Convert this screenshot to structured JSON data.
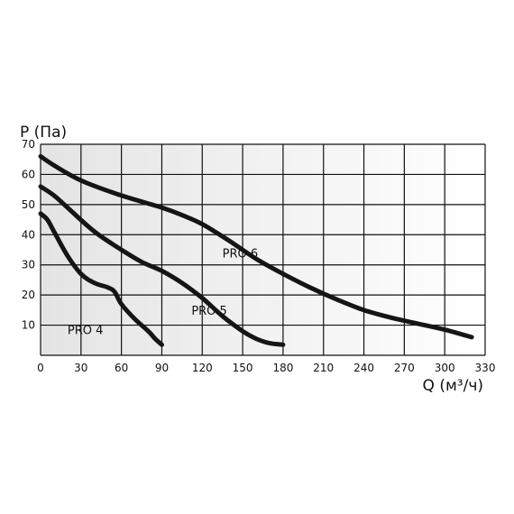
{
  "chart_data": {
    "type": "line",
    "title": "",
    "ylabel": "P (Па)",
    "xlabel": "Q (м³/ч)",
    "xlim": [
      0,
      330
    ],
    "ylim": [
      0,
      70
    ],
    "x_ticks": [
      0,
      30,
      60,
      90,
      120,
      150,
      180,
      210,
      240,
      270,
      300,
      330
    ],
    "y_ticks": [
      10,
      20,
      30,
      40,
      50,
      60,
      70
    ],
    "grid": true,
    "series": [
      {
        "name": "PRO 4",
        "points": [
          [
            0,
            47
          ],
          [
            5,
            45
          ],
          [
            10,
            41
          ],
          [
            20,
            33
          ],
          [
            30,
            27
          ],
          [
            40,
            24
          ],
          [
            50,
            22.5
          ],
          [
            55,
            21
          ],
          [
            60,
            17
          ],
          [
            70,
            12
          ],
          [
            80,
            8
          ],
          [
            85,
            5.5
          ],
          [
            90,
            3.5
          ]
        ]
      },
      {
        "name": "PRO 5",
        "points": [
          [
            0,
            56
          ],
          [
            10,
            53
          ],
          [
            20,
            49
          ],
          [
            40,
            41
          ],
          [
            60,
            35
          ],
          [
            75,
            31
          ],
          [
            90,
            28
          ],
          [
            105,
            24
          ],
          [
            120,
            19
          ],
          [
            135,
            13
          ],
          [
            150,
            8
          ],
          [
            160,
            5.5
          ],
          [
            170,
            4
          ],
          [
            180,
            3.5
          ]
        ]
      },
      {
        "name": "PRO 6",
        "points": [
          [
            0,
            66
          ],
          [
            10,
            63
          ],
          [
            30,
            58
          ],
          [
            60,
            53
          ],
          [
            90,
            49
          ],
          [
            105,
            46.5
          ],
          [
            120,
            43.5
          ],
          [
            140,
            38
          ],
          [
            160,
            32
          ],
          [
            180,
            27
          ],
          [
            200,
            22.5
          ],
          [
            220,
            18.5
          ],
          [
            240,
            15
          ],
          [
            260,
            12.5
          ],
          [
            280,
            10.5
          ],
          [
            300,
            8.5
          ],
          [
            320,
            6
          ]
        ]
      }
    ]
  }
}
